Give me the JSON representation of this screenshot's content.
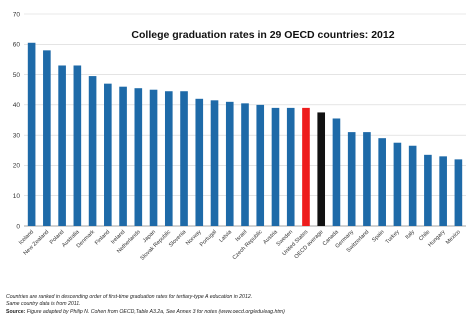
{
  "chart_data": {
    "type": "bar",
    "title": "College graduation rates in 29 OECD countries: 2012",
    "xlabel": "",
    "ylabel": "",
    "ylim": [
      0,
      70
    ],
    "yticks": [
      0,
      10,
      20,
      30,
      40,
      50,
      60,
      70
    ],
    "grid": true,
    "categories": [
      "Iceland",
      "New Zealand",
      "Poland",
      "Australia",
      "Denmark",
      "Finland",
      "Ireland",
      "Netherlands",
      "Japan",
      "Slovak Republic",
      "Slovenia",
      "Norway",
      "Portugal",
      "Latvia",
      "Israel",
      "Czech Republic",
      "Austria",
      "Sweden",
      "United States",
      "OECD average",
      "Canada",
      "Germany",
      "Switzerland",
      "Spain",
      "Turkey",
      "Italy",
      "Chile",
      "Hungary",
      "Mexico"
    ],
    "values": [
      60.5,
      58,
      53,
      53,
      49.5,
      47,
      46,
      45.5,
      45,
      44.5,
      44.5,
      42,
      41.5,
      41,
      40.5,
      40,
      39,
      39,
      39,
      37.5,
      35.5,
      31,
      31,
      29,
      27.5,
      26.5,
      23.5,
      23,
      22
    ],
    "colors": {
      "default": "#1e6aa8",
      "United States": "#ee1c1c",
      "OECD average": "#111111"
    }
  },
  "notes": {
    "line1": "Countries are ranked in descending order of first-time graduation rates for tertiary-type A education in 2012.",
    "line2": "Same country data is from 2011.",
    "source_label": "Source:",
    "source_text": "Figure adapted by Philip N. Cohen from OECD,Table A3.2a, See Annex 3 for notes (www.oecd.org/edu/eag.htm)"
  }
}
